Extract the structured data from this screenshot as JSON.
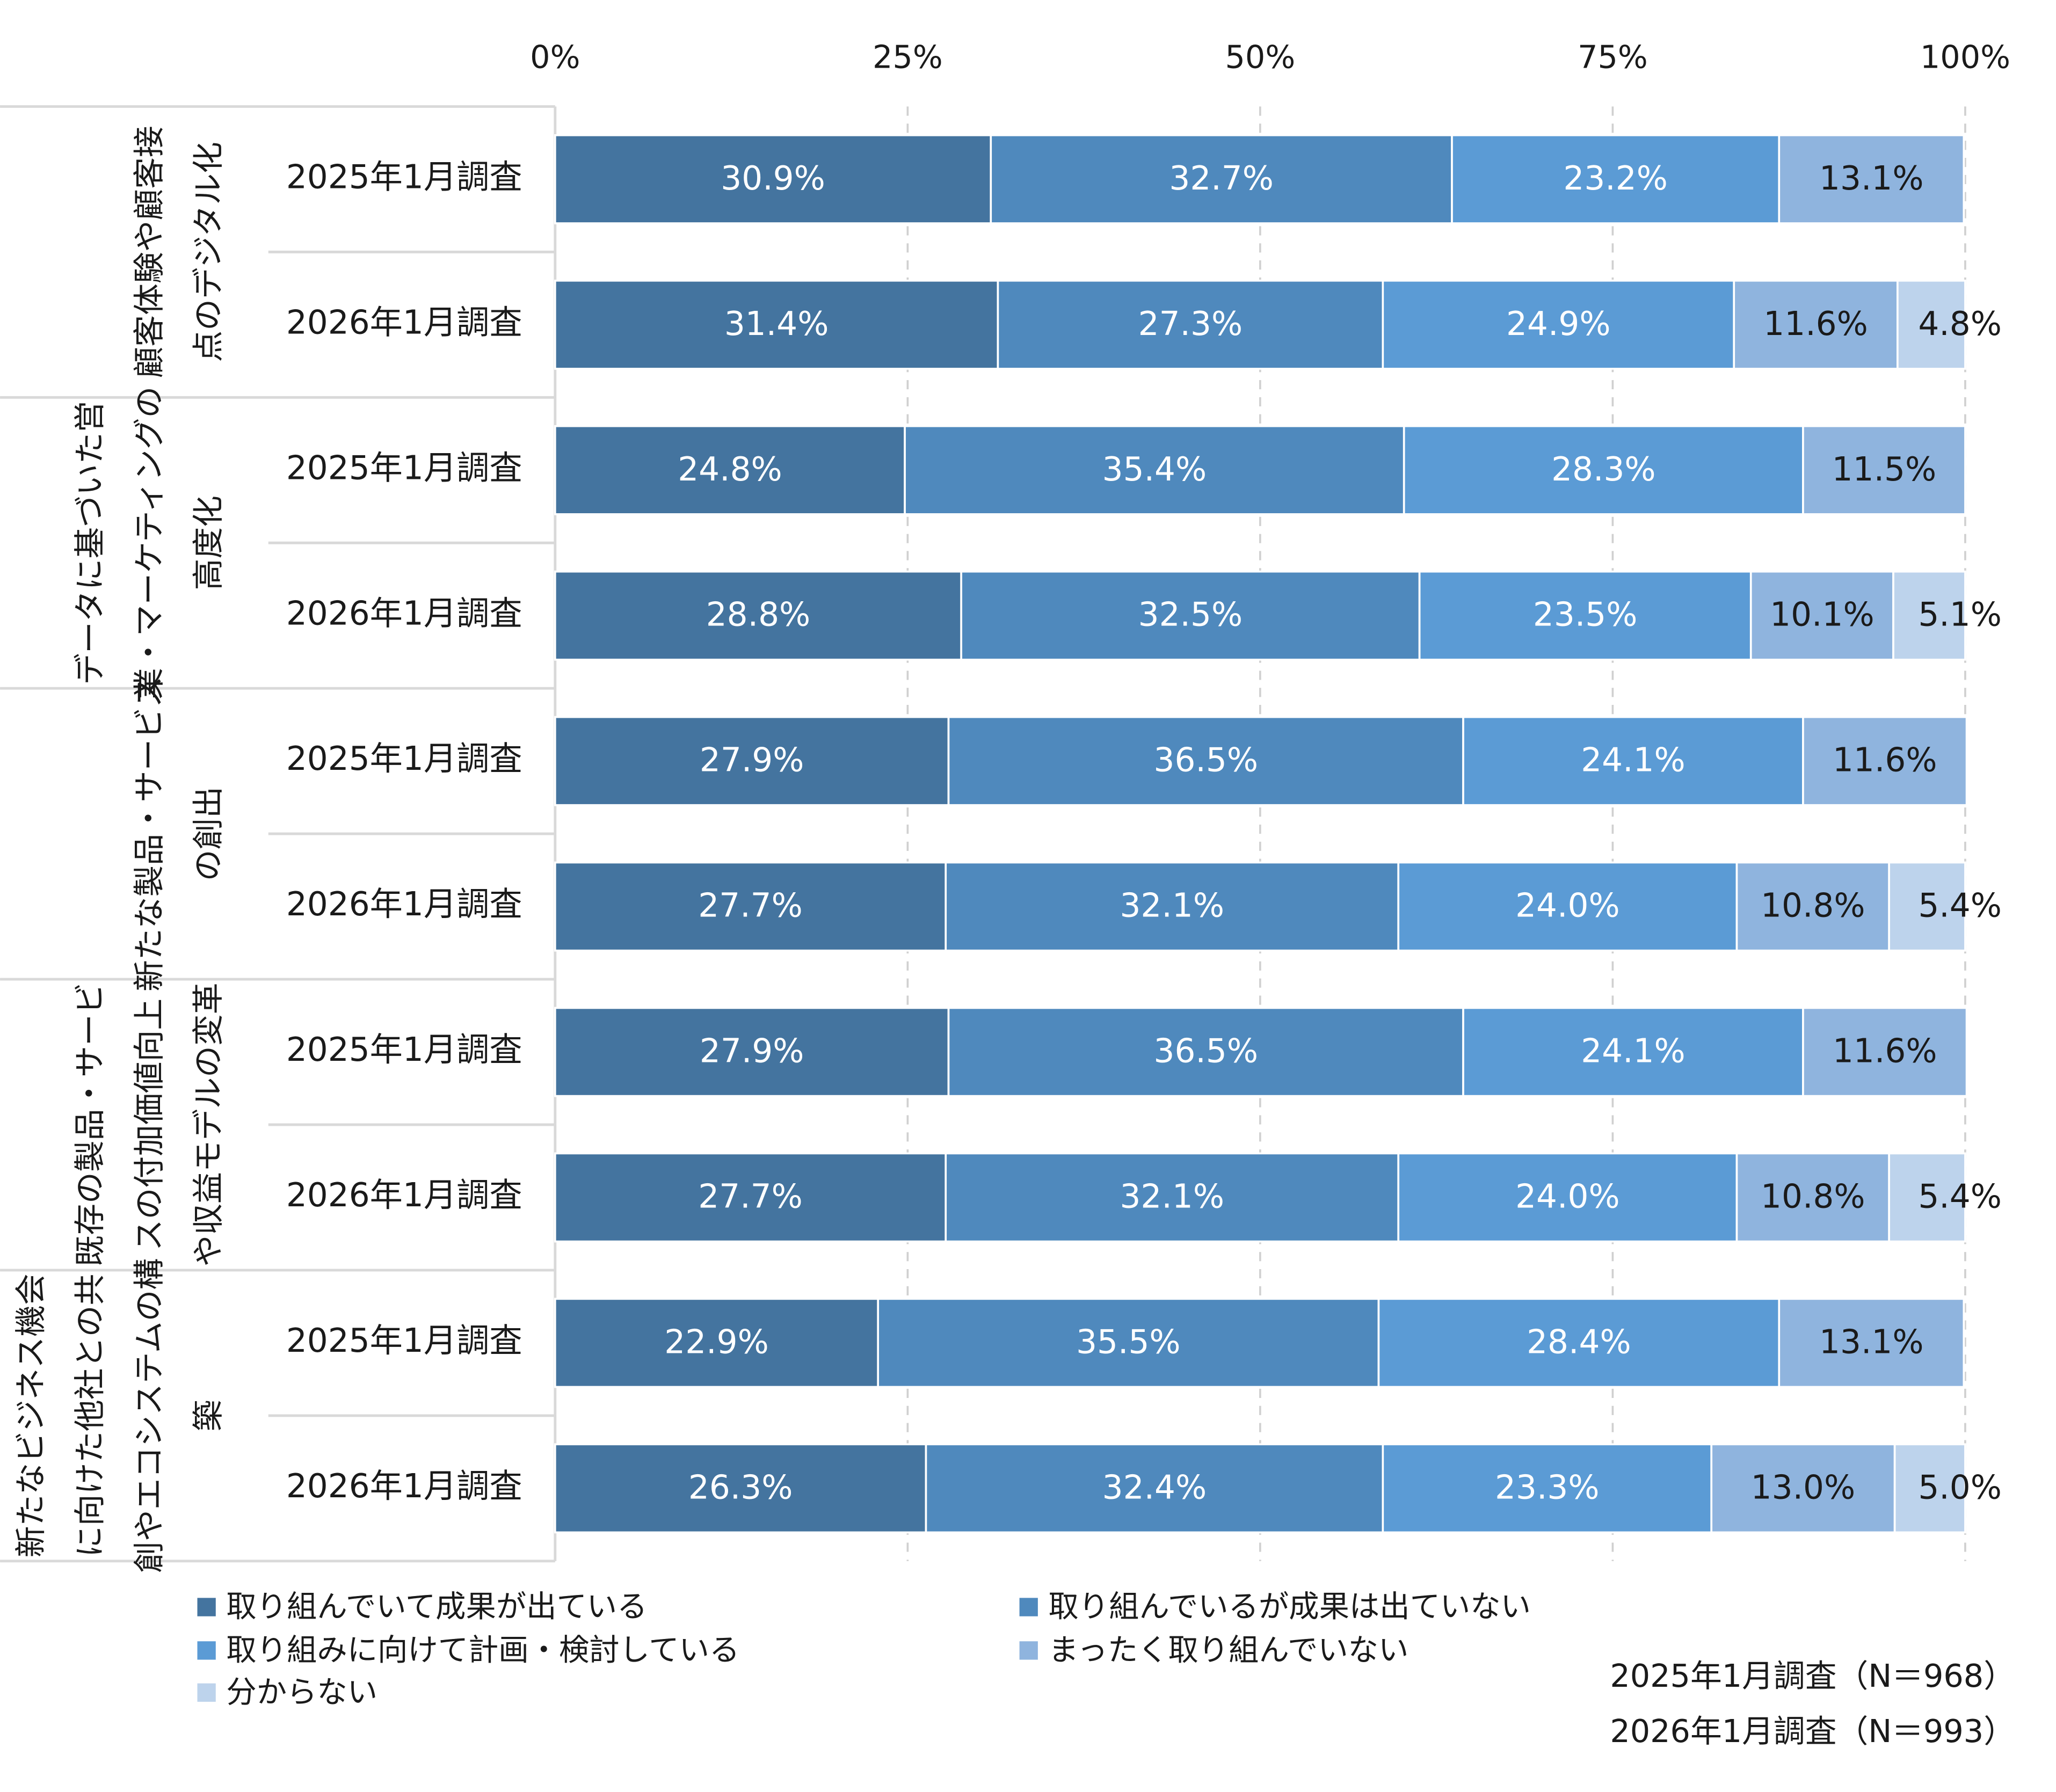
{
  "chart_data": {
    "type": "bar",
    "orientation": "horizontal",
    "stacked": true,
    "xlim": [
      0,
      100
    ],
    "xticks": [
      {
        "value": 0,
        "label": "0%"
      },
      {
        "value": 25,
        "label": "25%"
      },
      {
        "value": 50,
        "label": "50%"
      },
      {
        "value": 75,
        "label": "75%"
      },
      {
        "value": 100,
        "label": "100%"
      }
    ],
    "grid": true,
    "categories": [
      "2025年1月調査",
      "2026年1月調査",
      "2025年1月調査",
      "2026年1月調査",
      "2025年1月調査",
      "2026年1月調査",
      "2025年1月調査",
      "2026年1月調査",
      "2025年1月調査",
      "2026年1月調査"
    ],
    "groups": [
      {
        "label": [
          "顧客体験や顧客接",
          "点のデジタル化"
        ]
      },
      {
        "label": [
          "データに基づいた営",
          "業・マーケティングの",
          "高度化"
        ]
      },
      {
        "label": [
          "新たな製品・サービス",
          "の創出"
        ]
      },
      {
        "label": [
          "既存の製品・サービ",
          "スの付加価値向上",
          "や収益モデルの変革"
        ]
      },
      {
        "label": [
          "新たなビジネス機会",
          "に向けた他社との共",
          "創やエコシステムの構",
          "築"
        ]
      }
    ],
    "series": [
      {
        "name": "取り組んでいて成果が出ている",
        "color": "#44749f",
        "label_color": "#ffffff",
        "values": [
          30.9,
          31.4,
          24.8,
          28.8,
          27.9,
          27.7,
          27.9,
          27.7,
          22.9,
          26.3
        ],
        "value_labels": [
          "30.9%",
          "31.4%",
          "24.8%",
          "28.8%",
          "27.9%",
          "27.7%",
          "27.9%",
          "27.7%",
          "22.9%",
          "26.3%"
        ]
      },
      {
        "name": "取り組んでいるが成果は出ていない",
        "color": "#4f89bd",
        "label_color": "#ffffff",
        "values": [
          32.7,
          27.3,
          35.4,
          32.5,
          36.5,
          32.1,
          36.5,
          32.1,
          35.5,
          32.4
        ],
        "value_labels": [
          "32.7%",
          "27.3%",
          "35.4%",
          "32.5%",
          "36.5%",
          "32.1%",
          "36.5%",
          "32.1%",
          "35.5%",
          "32.4%"
        ]
      },
      {
        "name": "取り組みに向けて計画・検討している",
        "color": "#5b9bd5",
        "label_color": "#ffffff",
        "values": [
          23.2,
          24.9,
          28.3,
          23.5,
          24.1,
          24.0,
          24.1,
          24.0,
          28.4,
          23.3
        ],
        "value_labels": [
          "23.2%",
          "24.9%",
          "28.3%",
          "23.5%",
          "24.1%",
          "24.0%",
          "24.1%",
          "24.0%",
          "28.4%",
          "23.3%"
        ]
      },
      {
        "name": "まったく取り組んでいない",
        "color": "#8fb4de",
        "label_color": "#1a1a1a",
        "values": [
          13.1,
          11.6,
          11.5,
          10.1,
          11.6,
          10.8,
          11.6,
          10.8,
          13.1,
          13.0
        ],
        "value_labels": [
          "13.1%",
          "11.6%",
          "11.5%",
          "10.1%",
          "11.6%",
          "10.8%",
          "11.6%",
          "10.8%",
          "13.1%",
          "13.0%"
        ]
      },
      {
        "name": "分からない",
        "color": "#bdd3ec",
        "label_color": "#1a1a1a",
        "values": [
          null,
          4.8,
          null,
          5.1,
          null,
          5.4,
          null,
          5.4,
          null,
          5.0
        ],
        "value_labels": [
          null,
          "4.8%",
          null,
          "5.1%",
          null,
          "5.4%",
          null,
          "5.4%",
          null,
          "5.0%"
        ]
      }
    ],
    "notes": [
      "2025年1月調査（N＝968）",
      "2026年1月調査（N＝993）"
    ]
  }
}
